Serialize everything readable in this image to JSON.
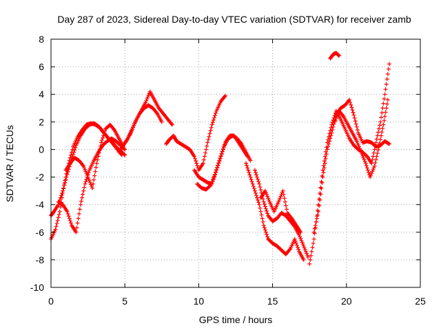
{
  "chart_data": {
    "type": "scatter",
    "title": "Day 287 of 2023, Sidereal Day-to-day VTEC variation (SDTVAR) for receiver zamb",
    "xlabel": "GPS time / hours",
    "ylabel": "SDTVAR / TECUs",
    "xlim": [
      0,
      25
    ],
    "ylim": [
      -10,
      8
    ],
    "xticks": [
      0,
      5,
      10,
      15,
      20,
      25
    ],
    "yticks": [
      -10,
      -8,
      -6,
      -4,
      -2,
      0,
      2,
      4,
      6,
      8
    ],
    "grid": true,
    "marker": "+",
    "colors": {
      "series": "#ff0000",
      "grid": "#a0a0a0",
      "axis": "#000000"
    },
    "series": [
      {
        "name": "track-1",
        "x": [
          0.0,
          0.3,
          0.6,
          0.9,
          1.2,
          1.5,
          1.8,
          2.1,
          2.4,
          2.7,
          3.0,
          3.3,
          3.6,
          3.9,
          4.2,
          4.5,
          4.8
        ],
        "y": [
          -6.5,
          -5.8,
          -4.5,
          -2.5,
          -1.0,
          0.2,
          0.9,
          1.4,
          1.8,
          1.9,
          1.8,
          1.6,
          1.2,
          0.8,
          0.4,
          0.0,
          -0.4
        ]
      },
      {
        "name": "track-2",
        "x": [
          0.0,
          0.2,
          0.5,
          0.8,
          1.1,
          1.4,
          1.7,
          2.0,
          2.3,
          2.6,
          2.9,
          3.2,
          3.5,
          3.8,
          4.1,
          4.4,
          4.7,
          5.0
        ],
        "y": [
          -4.8,
          -4.5,
          -4.0,
          -3.0,
          -1.8,
          -0.7,
          0.3,
          1.0,
          1.5,
          1.8,
          1.9,
          1.7,
          1.3,
          0.9,
          0.6,
          0.2,
          -0.1,
          -0.4
        ]
      },
      {
        "name": "track-3",
        "x": [
          0.5,
          0.8,
          1.1,
          1.4,
          1.7,
          2.0,
          2.3,
          2.6,
          2.9,
          3.2,
          3.5,
          3.8,
          4.1,
          4.4,
          4.7,
          5.0
        ],
        "y": [
          -3.8,
          -4.0,
          -4.5,
          -5.5,
          -6.0,
          -4.0,
          -2.5,
          -1.5,
          -0.8,
          -0.2,
          0.3,
          0.6,
          0.8,
          0.6,
          0.3,
          0.0
        ]
      },
      {
        "name": "track-4",
        "x": [
          1.0,
          1.3,
          1.6,
          1.9,
          2.2,
          2.5,
          2.8,
          3.1,
          3.4,
          3.7,
          4.0,
          4.3,
          4.6,
          4.9
        ],
        "y": [
          -1.5,
          -1.0,
          -0.6,
          -0.8,
          -1.2,
          -2.0,
          -2.8,
          -1.0,
          0.5,
          1.5,
          1.8,
          1.4,
          0.8,
          0.2
        ]
      },
      {
        "name": "track-5",
        "x": [
          4.6,
          4.9,
          5.2,
          5.5,
          5.8,
          6.1,
          6.4,
          6.7,
          7.0,
          7.3,
          7.6,
          7.9,
          8.2
        ],
        "y": [
          -0.2,
          0.3,
          0.8,
          1.5,
          2.2,
          2.8,
          3.4,
          4.2,
          3.6,
          3.0,
          2.6,
          2.2,
          1.8
        ]
      },
      {
        "name": "track-6",
        "x": [
          4.8,
          5.1,
          5.4,
          5.7,
          6.0,
          6.3,
          6.6,
          6.9,
          7.2,
          7.5
        ],
        "y": [
          0.2,
          0.6,
          1.2,
          2.0,
          2.6,
          3.0,
          3.2,
          3.0,
          2.6,
          2.0
        ]
      },
      {
        "name": "track-7",
        "x": [
          7.8,
          8.0,
          8.3,
          8.5,
          8.8,
          9.1,
          9.4,
          9.7,
          10.0,
          10.3,
          10.6,
          10.9,
          11.2,
          11.5,
          11.8
        ],
        "y": [
          0.4,
          0.7,
          1.0,
          0.6,
          0.4,
          0.2,
          0.0,
          -0.5,
          -1.5,
          -1.0,
          0.5,
          1.8,
          2.8,
          3.5,
          3.9
        ]
      },
      {
        "name": "track-8",
        "x": [
          9.7,
          10.0,
          10.3,
          10.6,
          10.9,
          11.2,
          11.5,
          11.8,
          12.1,
          12.4,
          12.7,
          13.0,
          13.3
        ],
        "y": [
          -1.5,
          -2.0,
          -2.2,
          -2.4,
          -2.5,
          -1.5,
          -0.5,
          0.5,
          1.0,
          1.0,
          0.5,
          0.0,
          -0.5
        ]
      },
      {
        "name": "track-9",
        "x": [
          9.9,
          10.2,
          10.5,
          10.8,
          11.1,
          11.4,
          11.7,
          12.0,
          12.3,
          12.6,
          12.9,
          13.2,
          13.5
        ],
        "y": [
          -2.5,
          -2.8,
          -2.9,
          -2.6,
          -1.8,
          -0.8,
          0.2,
          0.8,
          1.0,
          0.8,
          0.4,
          -0.2,
          -0.8
        ]
      },
      {
        "name": "track-10",
        "x": [
          13.2,
          13.5,
          13.8,
          14.1,
          14.4,
          14.7,
          15.0,
          15.3,
          15.6,
          15.9,
          16.2,
          16.5,
          16.8,
          17.1
        ],
        "y": [
          -1.0,
          -2.0,
          -3.0,
          -4.0,
          -5.5,
          -6.5,
          -6.8,
          -7.0,
          -7.3,
          -7.6,
          -7.2,
          -6.5,
          -7.4,
          -8.0
        ]
      },
      {
        "name": "track-11",
        "x": [
          13.8,
          14.1,
          14.4,
          14.7,
          15.0,
          15.3,
          15.6,
          15.9,
          16.2,
          16.5,
          16.8,
          17.1,
          17.4
        ],
        "y": [
          -1.5,
          -2.5,
          -3.8,
          -4.8,
          -5.2,
          -5.0,
          -4.6,
          -4.8,
          -5.2,
          -5.6,
          -6.2,
          -7.0,
          -7.8
        ]
      },
      {
        "name": "track-12",
        "x": [
          14.2,
          14.5,
          14.8,
          15.1,
          15.4,
          15.7,
          16.0,
          16.3,
          16.6,
          16.9
        ],
        "y": [
          -3.5,
          -3.0,
          -3.8,
          -4.5,
          -3.8,
          -3.0,
          -4.6,
          -5.0,
          -5.5,
          -6.0
        ]
      },
      {
        "name": "track-13",
        "x": [
          17.5,
          17.8,
          18.1,
          18.4,
          18.7,
          19.0,
          19.3,
          19.6,
          19.9,
          20.2,
          20.5,
          20.8,
          21.1,
          21.4,
          21.7,
          22.0,
          22.3,
          22.6,
          22.9
        ],
        "y": [
          -8.3,
          -6.5,
          -4.0,
          -1.5,
          0.5,
          1.8,
          2.8,
          2.2,
          1.5,
          0.8,
          0.3,
          0.0,
          -0.2,
          -0.5,
          -1.0,
          0.5,
          2.0,
          4.0,
          6.2
        ]
      },
      {
        "name": "track-14",
        "x": [
          17.8,
          18.1,
          18.4,
          18.7,
          19.0,
          19.3,
          19.6,
          19.9,
          20.2,
          20.5,
          20.8,
          21.1,
          21.4,
          21.7,
          22.0,
          22.3,
          22.6,
          22.9
        ],
        "y": [
          -6.0,
          -4.5,
          -2.0,
          0.0,
          1.2,
          2.5,
          3.0,
          3.2,
          3.6,
          2.5,
          1.2,
          0.5,
          0.6,
          0.5,
          0.2,
          0.3,
          0.6,
          0.4
        ]
      },
      {
        "name": "track-15",
        "x": [
          19.2,
          19.5,
          19.8,
          20.1,
          20.4,
          20.7,
          21.0,
          21.3,
          21.6,
          21.9,
          22.2,
          22.5,
          22.8
        ],
        "y": [
          2.0,
          2.8,
          2.4,
          1.8,
          1.2,
          0.6,
          -0.2,
          -1.0,
          -2.0,
          -1.2,
          0.2,
          1.8,
          3.6
        ]
      },
      {
        "name": "track-16",
        "x": [
          18.9,
          19.1,
          19.3,
          19.5
        ],
        "y": [
          6.6,
          6.9,
          7.0,
          6.8
        ]
      }
    ]
  }
}
